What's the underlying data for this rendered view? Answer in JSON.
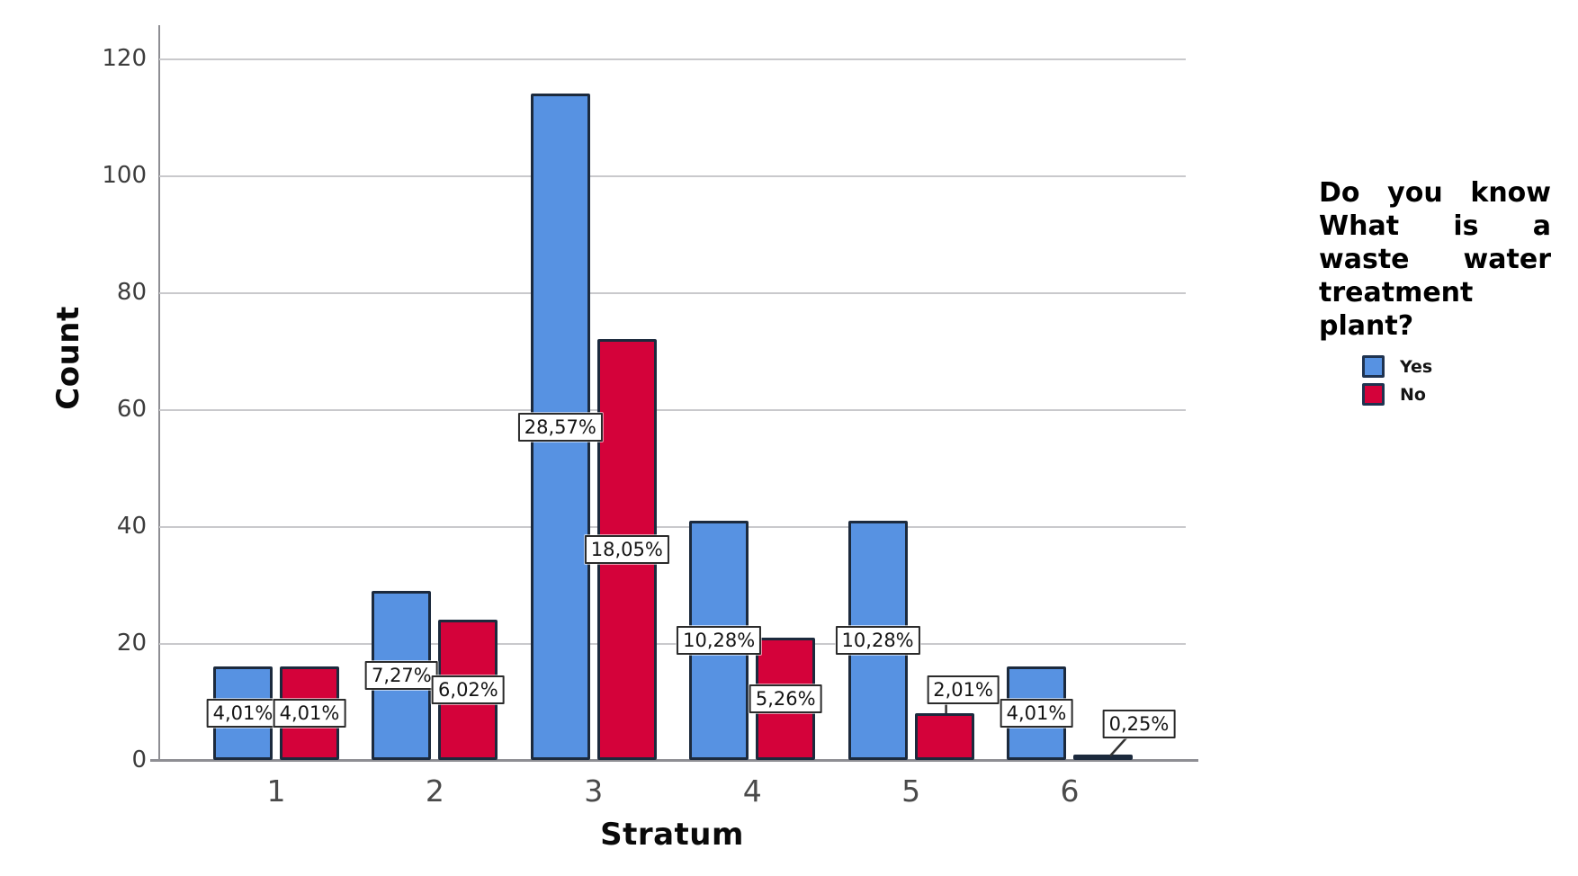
{
  "chart_data": {
    "type": "bar",
    "title": "",
    "xlabel": "Stratum",
    "ylabel": "Count",
    "categories": [
      "1",
      "2",
      "3",
      "4",
      "5",
      "6"
    ],
    "series": [
      {
        "name": "Yes",
        "color": "#5792E2",
        "values": [
          16,
          29,
          114,
          41,
          41,
          16
        ],
        "bar_labels": [
          "4,01%",
          "7,27%",
          "28,57%",
          "10,28%",
          "10,28%",
          "4,01%"
        ]
      },
      {
        "name": "No",
        "color": "#D4023A",
        "values": [
          16,
          24,
          72,
          21,
          8,
          1
        ],
        "bar_labels": [
          "4,01%",
          "6,02%",
          "18,05%",
          "5,26%",
          "2,01%",
          "0,25%"
        ]
      }
    ],
    "ylim": [
      0,
      120
    ],
    "yticks": [
      0,
      20,
      40,
      60,
      80,
      100,
      120
    ],
    "grid": true,
    "legend_title": "Do you know What is a waste water treatment plant?",
    "legend_position": "right",
    "colors": {
      "axis": "#8e8e93",
      "gridline": "#c9c9cc",
      "bar_border": "#1c2a3d",
      "label_box_bg": "#ffffff",
      "label_box_border": "#2b2b2b",
      "tick_text": "#4a4a4a",
      "title_text": "#0a0a0a"
    }
  }
}
